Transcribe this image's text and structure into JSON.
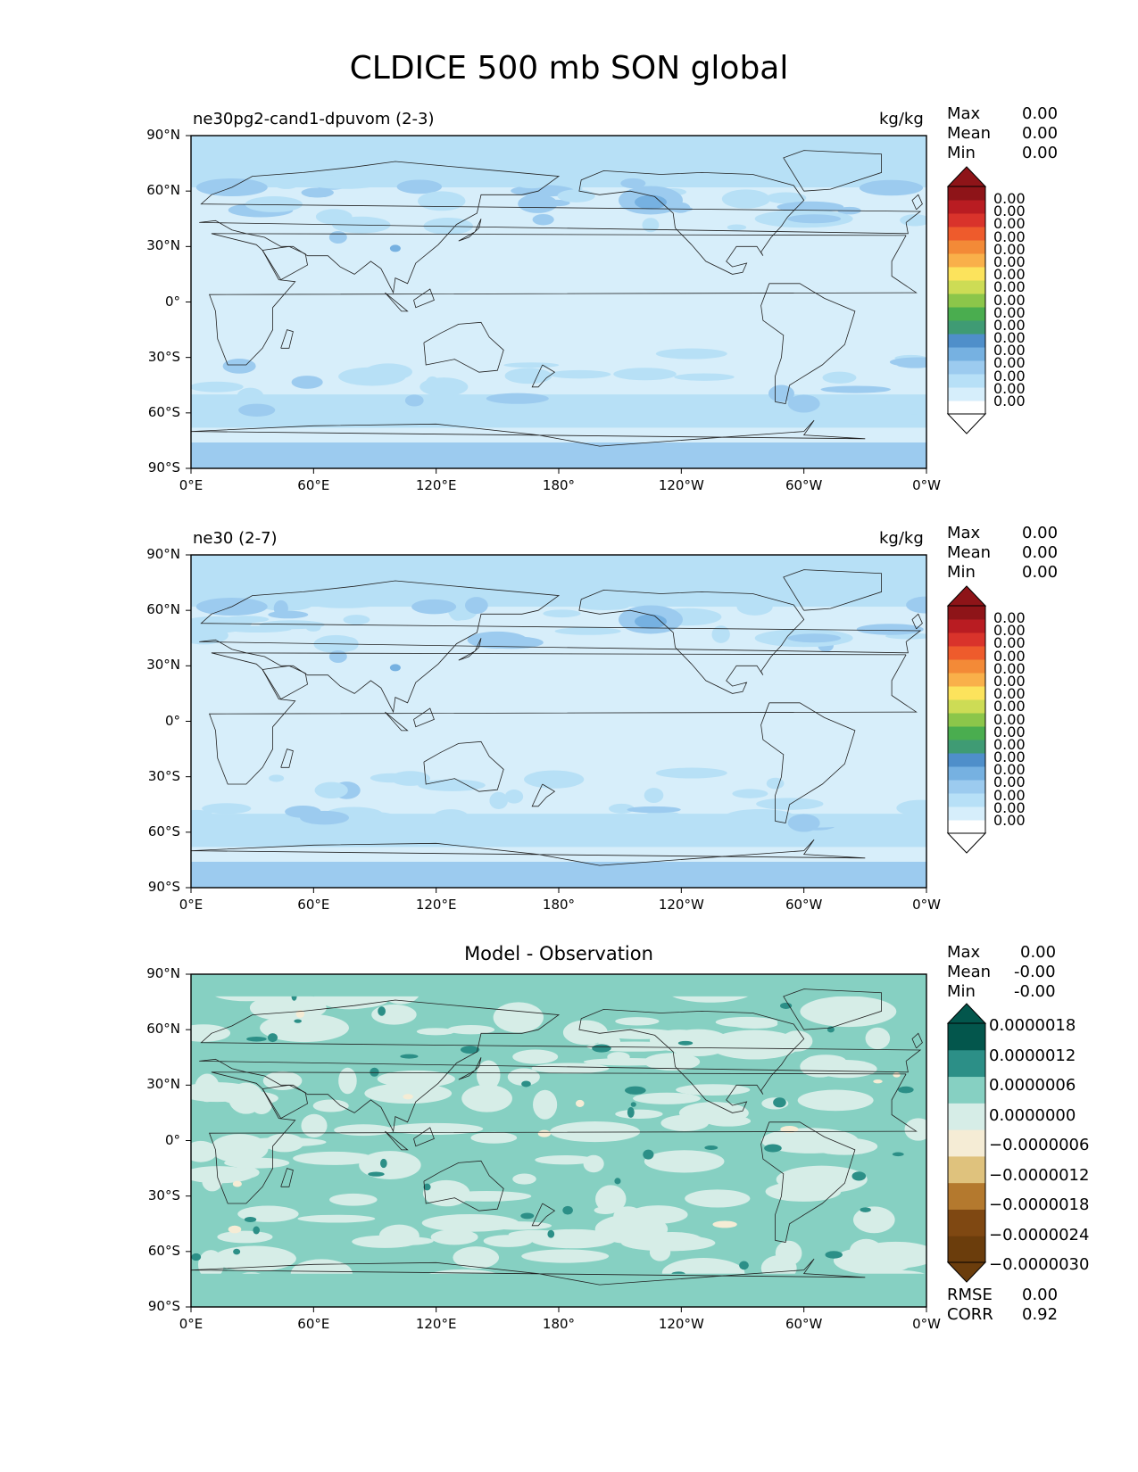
{
  "figure": {
    "title": "CLDICE 500 mb SON global"
  },
  "axes": {
    "lat_labels": [
      "90°N",
      "60°N",
      "30°N",
      "0°",
      "30°S",
      "60°S",
      "90°S"
    ],
    "lon_labels": [
      "0°E",
      "60°E",
      "120°E",
      "180°",
      "120°W",
      "60°W",
      "0°W"
    ]
  },
  "panels": [
    {
      "left_title": "ne30pg2-cand1-dpuvom (2-3)",
      "right_title": "kg/kg",
      "center_title": "",
      "stats": [
        {
          "label": "Max",
          "value": "0.00"
        },
        {
          "label": "Mean",
          "value": "0.00"
        },
        {
          "label": "Min",
          "value": "0.00"
        }
      ],
      "colorbar_labels": [
        "0.00",
        "0.00",
        "0.00",
        "0.00",
        "0.00",
        "0.00",
        "0.00",
        "0.00",
        "0.00",
        "0.00",
        "0.00",
        "0.00",
        "0.00",
        "0.00",
        "0.00",
        "0.00",
        "0.00"
      ]
    },
    {
      "left_title": "ne30 (2-7)",
      "right_title": "kg/kg",
      "center_title": "",
      "stats": [
        {
          "label": "Max",
          "value": "0.00"
        },
        {
          "label": "Mean",
          "value": "0.00"
        },
        {
          "label": "Min",
          "value": "0.00"
        }
      ],
      "colorbar_labels": [
        "0.00",
        "0.00",
        "0.00",
        "0.00",
        "0.00",
        "0.00",
        "0.00",
        "0.00",
        "0.00",
        "0.00",
        "0.00",
        "0.00",
        "0.00",
        "0.00",
        "0.00",
        "0.00",
        "0.00"
      ]
    },
    {
      "left_title": "",
      "right_title": "",
      "center_title": "Model - Observation",
      "stats": [
        {
          "label": "Max",
          "value": "0.00"
        },
        {
          "label": "Mean",
          "value": "-0.00"
        },
        {
          "label": "Min",
          "value": "-0.00"
        }
      ],
      "colorbar_labels": [
        "0.0000018",
        "0.0000012",
        "0.0000006",
        "0.0000000",
        "−0.0000006",
        "−0.0000012",
        "−0.0000018",
        "−0.0000024",
        "−0.0000030"
      ],
      "metrics": [
        {
          "label": "RMSE",
          "value": "0.00"
        },
        {
          "label": "CORR",
          "value": "0.92"
        }
      ]
    }
  ],
  "colors": {
    "seq_colorbar": [
      "#ffffff",
      "#d6eefb",
      "#b7e0f7",
      "#9ccbef",
      "#76b1e1",
      "#4f8fca",
      "#3f9b74",
      "#4aad4f",
      "#8cc64a",
      "#cddc55",
      "#fce35c",
      "#f9b04a",
      "#f38a37",
      "#ee5b2c",
      "#d9332b",
      "#b91c22",
      "#8e1418"
    ],
    "seq_field": [
      "#d7eefa",
      "#b7e0f6",
      "#9ccbef",
      "#76b1e1"
    ],
    "diff_colorbar": [
      "#6b3d0c",
      "#7f4812",
      "#b4792e",
      "#dfc27d",
      "#f5ecd5",
      "#d6ede7",
      "#86d0c2",
      "#2c8f87",
      "#03564c"
    ],
    "diff_field": [
      "#d6ede7",
      "#86d0c2",
      "#2c8f87",
      "#f5ecd5"
    ]
  }
}
